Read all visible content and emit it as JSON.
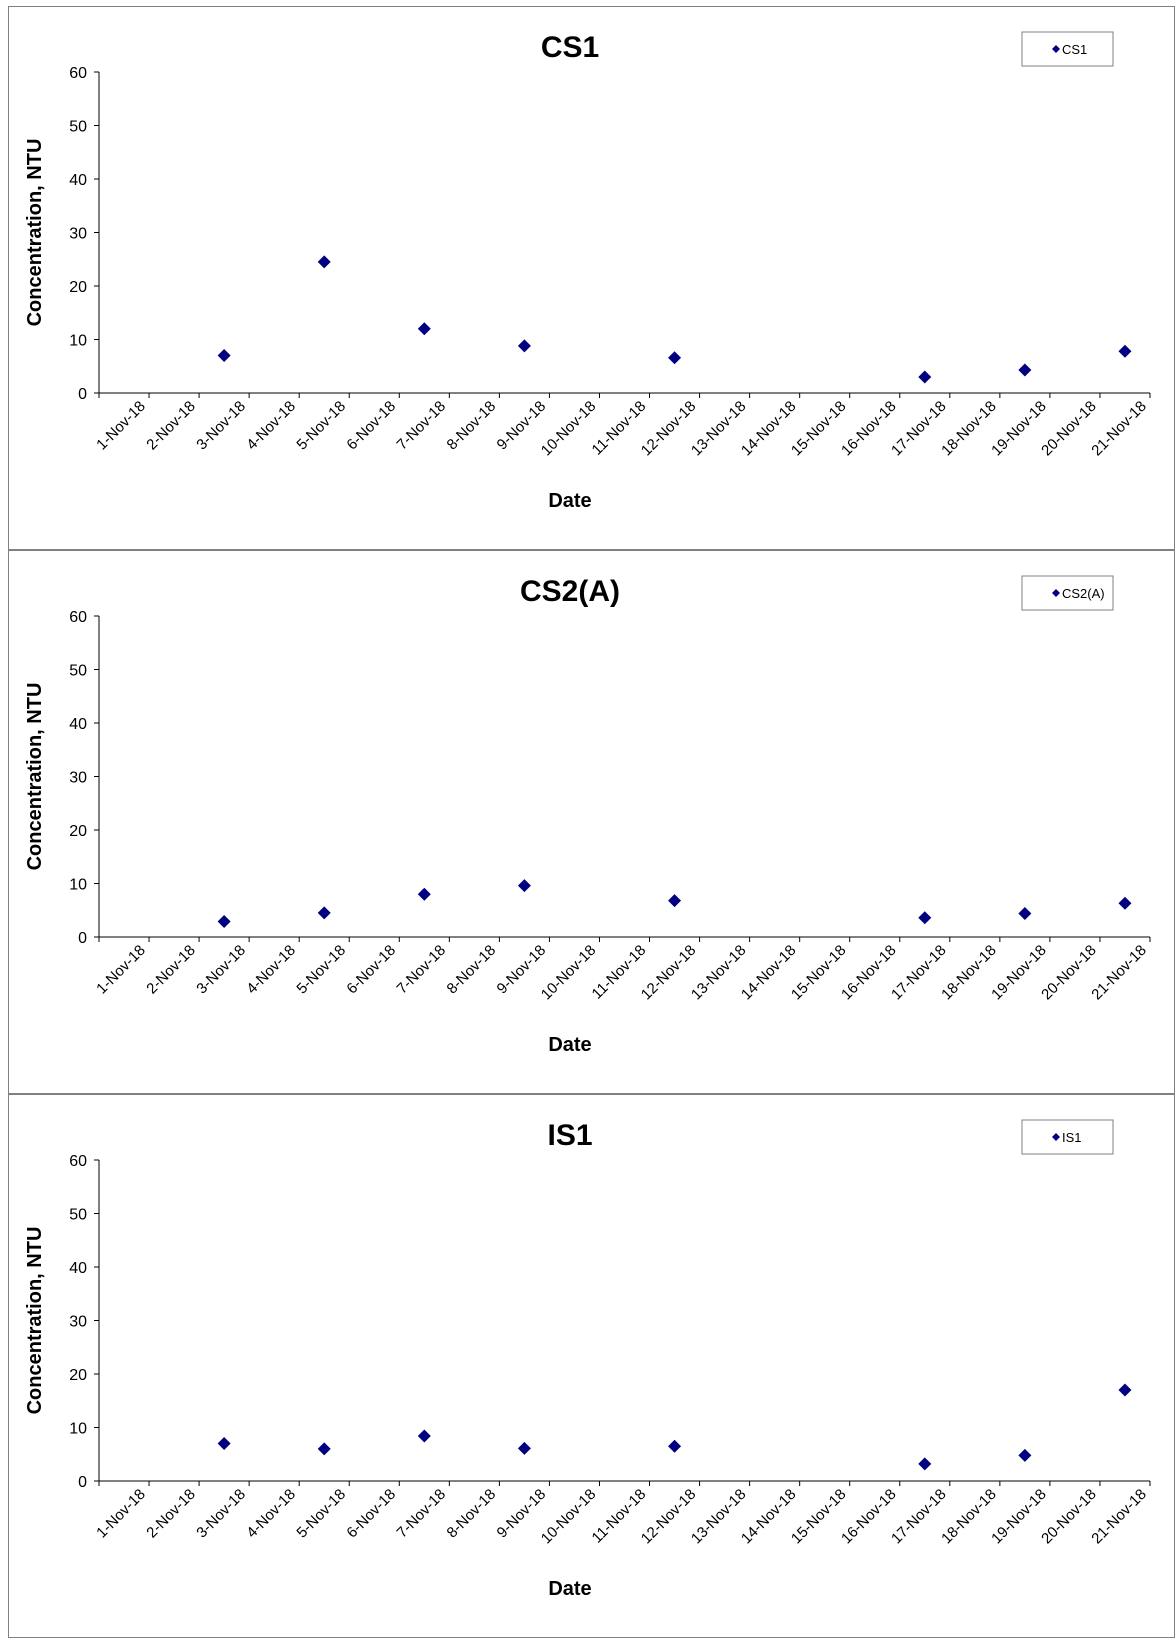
{
  "chart_data": [
    {
      "type": "scatter",
      "title": "CS1",
      "xlabel": "Date",
      "ylabel": "Concentration, NTU",
      "legend_position": "top-right",
      "ylim": [
        0,
        60
      ],
      "yticks": [
        0,
        10,
        20,
        30,
        40,
        50,
        60
      ],
      "xticks": [
        "1-Nov-18",
        "2-Nov-18",
        "3-Nov-18",
        "4-Nov-18",
        "5-Nov-18",
        "6-Nov-18",
        "7-Nov-18",
        "8-Nov-18",
        "9-Nov-18",
        "10-Nov-18",
        "11-Nov-18",
        "12-Nov-18",
        "13-Nov-18",
        "14-Nov-18",
        "15-Nov-18",
        "16-Nov-18",
        "17-Nov-18",
        "18-Nov-18",
        "19-Nov-18",
        "20-Nov-18",
        "21-Nov-18"
      ],
      "grid": false,
      "series": [
        {
          "name": "CS1",
          "color": "#000080",
          "marker": "diamond",
          "x": [
            "3-Nov-18",
            "5-Nov-18",
            "7-Nov-18",
            "9-Nov-18",
            "12-Nov-18",
            "17-Nov-18",
            "19-Nov-18",
            "21-Nov-18"
          ],
          "y": [
            7.0,
            24.5,
            12.0,
            8.8,
            6.6,
            3.0,
            4.3,
            7.8
          ]
        }
      ]
    },
    {
      "type": "scatter",
      "title": "CS2(A)",
      "xlabel": "Date",
      "ylabel": "Concentration, NTU",
      "legend_position": "top-right",
      "ylim": [
        0,
        60
      ],
      "yticks": [
        0,
        10,
        20,
        30,
        40,
        50,
        60
      ],
      "xticks": [
        "1-Nov-18",
        "2-Nov-18",
        "3-Nov-18",
        "4-Nov-18",
        "5-Nov-18",
        "6-Nov-18",
        "7-Nov-18",
        "8-Nov-18",
        "9-Nov-18",
        "10-Nov-18",
        "11-Nov-18",
        "12-Nov-18",
        "13-Nov-18",
        "14-Nov-18",
        "15-Nov-18",
        "16-Nov-18",
        "17-Nov-18",
        "18-Nov-18",
        "19-Nov-18",
        "20-Nov-18",
        "21-Nov-18"
      ],
      "grid": false,
      "series": [
        {
          "name": "CS2(A)",
          "color": "#000080",
          "marker": "diamond",
          "x": [
            "3-Nov-18",
            "5-Nov-18",
            "7-Nov-18",
            "9-Nov-18",
            "12-Nov-18",
            "17-Nov-18",
            "19-Nov-18",
            "21-Nov-18"
          ],
          "y": [
            2.9,
            4.5,
            8.0,
            9.6,
            6.8,
            3.6,
            4.4,
            6.3
          ]
        }
      ]
    },
    {
      "type": "scatter",
      "title": "IS1",
      "xlabel": "Date",
      "ylabel": "Concentration, NTU",
      "legend_position": "top-right",
      "ylim": [
        0,
        60
      ],
      "yticks": [
        0,
        10,
        20,
        30,
        40,
        50,
        60
      ],
      "xticks": [
        "1-Nov-18",
        "2-Nov-18",
        "3-Nov-18",
        "4-Nov-18",
        "5-Nov-18",
        "6-Nov-18",
        "7-Nov-18",
        "8-Nov-18",
        "9-Nov-18",
        "10-Nov-18",
        "11-Nov-18",
        "12-Nov-18",
        "13-Nov-18",
        "14-Nov-18",
        "15-Nov-18",
        "16-Nov-18",
        "17-Nov-18",
        "18-Nov-18",
        "19-Nov-18",
        "20-Nov-18",
        "21-Nov-18"
      ],
      "grid": false,
      "series": [
        {
          "name": "IS1",
          "color": "#000080",
          "marker": "diamond",
          "x": [
            "3-Nov-18",
            "5-Nov-18",
            "7-Nov-18",
            "9-Nov-18",
            "12-Nov-18",
            "17-Nov-18",
            "19-Nov-18",
            "21-Nov-18"
          ],
          "y": [
            7.0,
            6.0,
            8.4,
            6.1,
            6.5,
            3.2,
            4.8,
            17.0
          ]
        }
      ]
    }
  ]
}
